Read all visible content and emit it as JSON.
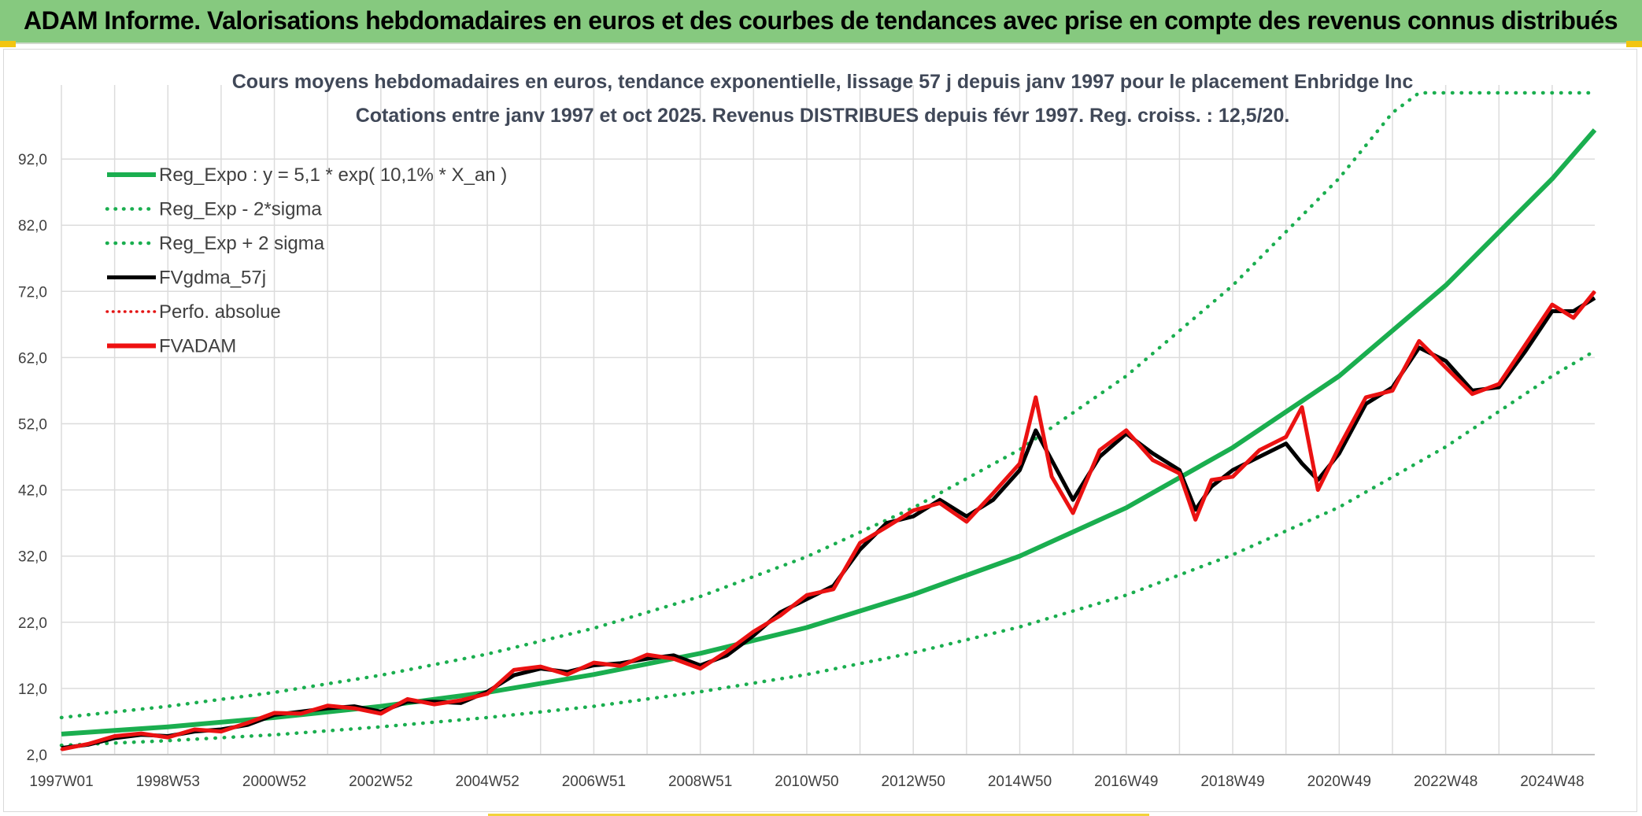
{
  "header": {
    "title": "ADAM Informe. Valorisations hebdomadaires en euros et des courbes de tendances avec prise en compte des revenus connus distribués"
  },
  "colors": {
    "header_bg": "#86c97f",
    "reg_expo": "#1aae4f",
    "band": "#1aae4f",
    "fvgdma": "#000000",
    "perfo": "#e41414",
    "fvadam": "#ee1111",
    "grid": "#dcdcdc"
  },
  "chart_data": {
    "type": "line",
    "title_line1": "Cours moyens hebdomadaires en euros, tendance exponentielle, lissage 57 j depuis janv 1997 pour le placement Enbridge Inc",
    "title_line2": "Cotations entre janv 1997 et oct 2025. Revenus DISTRIBUES depuis févr 1997. Reg. croiss. : 12,5/20.",
    "x_range": [
      1997.0,
      2025.8
    ],
    "ylim": [
      2.0,
      102.0
    ],
    "y_ticks": [
      "2,0",
      "12,0",
      "22,0",
      "32,0",
      "42,0",
      "52,0",
      "62,0",
      "72,0",
      "82,0",
      "92,0"
    ],
    "y_tick_values": [
      2,
      12,
      22,
      32,
      42,
      52,
      62,
      72,
      82,
      92
    ],
    "x_ticks": [
      "1997W01",
      "1998W53",
      "2000W52",
      "2002W52",
      "2004W52",
      "2006W51",
      "2008W51",
      "2010W50",
      "2012W50",
      "2014W50",
      "2016W49",
      "2018W49",
      "2020W49",
      "2022W48",
      "2024W48"
    ],
    "x_tick_values": [
      1997.0,
      1999.0,
      2001.0,
      2003.0,
      2005.0,
      2007.0,
      2009.0,
      2011.0,
      2013.0,
      2015.0,
      2017.0,
      2019.0,
      2021.0,
      2023.0,
      2025.0
    ],
    "legend_position": "top-left",
    "grid": true,
    "legend": [
      {
        "label": "Reg_Expo : y = 5,1 * exp( 10,1% *  X_an )",
        "style": "solid-green"
      },
      {
        "label": "Reg_Exp - 2*sigma",
        "style": "dotted-green"
      },
      {
        "label": "Reg_Exp + 2 sigma",
        "style": "dotted-green"
      },
      {
        "label": "FVgdma_57j",
        "style": "solid-black"
      },
      {
        "label": "Perfo. absolue",
        "style": "dotted-red"
      },
      {
        "label": "FVADAM",
        "style": "solid-red"
      }
    ],
    "series": [
      {
        "name": "Reg_Expo : y = 5,1 * exp( 10,1% *  X_an )",
        "x": [
          1997.0,
          1999.0,
          2001.0,
          2003.0,
          2005.0,
          2007.0,
          2009.0,
          2011.0,
          2013.0,
          2015.0,
          2017.0,
          2019.0,
          2021.0,
          2023.0,
          2025.0,
          2025.8
        ],
        "values": [
          5.1,
          6.2,
          7.6,
          9.3,
          11.4,
          14.1,
          17.3,
          21.2,
          26.2,
          32.0,
          39.3,
          48.4,
          59.2,
          72.9,
          89.0,
          96.4
        ]
      },
      {
        "name": "Reg_Exp - 2*sigma",
        "x": [
          1997.0,
          1999.0,
          2001.0,
          2003.0,
          2005.0,
          2007.0,
          2009.0,
          2011.0,
          2013.0,
          2015.0,
          2017.0,
          2019.0,
          2021.0,
          2023.0,
          2025.0,
          2025.8
        ],
        "values": [
          3.4,
          4.1,
          5.0,
          6.2,
          7.6,
          9.3,
          11.5,
          14.1,
          17.4,
          21.3,
          26.1,
          32.2,
          39.4,
          48.5,
          59.2,
          63.0
        ]
      },
      {
        "name": "Reg_Exp + 2 sigma",
        "x": [
          1997.0,
          1999.0,
          2001.0,
          2003.0,
          2005.0,
          2007.0,
          2009.0,
          2011.0,
          2013.0,
          2015.0,
          2017.0,
          2019.0,
          2021.0,
          2022.0,
          2022.5,
          2025.8
        ],
        "values": [
          7.6,
          9.3,
          11.4,
          14.0,
          17.2,
          21.1,
          25.9,
          31.9,
          39.3,
          48.1,
          59.2,
          72.9,
          89.1,
          99.0,
          102.0,
          102.0
        ]
      },
      {
        "name": "FVgdma_57j",
        "x": [
          1997.0,
          1997.5,
          1998.0,
          1998.5,
          1999.0,
          1999.5,
          2000.0,
          2000.5,
          2001.0,
          2001.5,
          2002.0,
          2002.5,
          2003.0,
          2003.5,
          2004.0,
          2004.5,
          2005.0,
          2005.5,
          2006.0,
          2006.5,
          2007.0,
          2007.5,
          2008.0,
          2008.5,
          2009.0,
          2009.5,
          2010.0,
          2010.5,
          2011.0,
          2011.5,
          2012.0,
          2012.5,
          2013.0,
          2013.5,
          2014.0,
          2014.5,
          2015.0,
          2015.3,
          2015.6,
          2016.0,
          2016.5,
          2017.0,
          2017.5,
          2018.0,
          2018.3,
          2018.6,
          2019.0,
          2019.5,
          2020.0,
          2020.3,
          2020.6,
          2021.0,
          2021.5,
          2022.0,
          2022.5,
          2023.0,
          2023.5,
          2024.0,
          2024.5,
          2025.0,
          2025.4,
          2025.8
        ],
        "values": [
          3.0,
          3.5,
          4.5,
          5.0,
          4.8,
          5.5,
          5.8,
          6.5,
          8.0,
          8.5,
          9.0,
          9.3,
          8.5,
          10.0,
          10.0,
          9.8,
          11.5,
          14.0,
          15.0,
          14.5,
          15.5,
          15.8,
          16.5,
          17.0,
          15.5,
          17.0,
          20.0,
          23.5,
          25.5,
          27.5,
          33.0,
          37.0,
          38.0,
          40.5,
          38.0,
          40.5,
          45.0,
          51.0,
          46.5,
          40.5,
          47.0,
          50.5,
          47.5,
          45.0,
          39.0,
          42.5,
          45.0,
          47.0,
          49.0,
          46.0,
          43.5,
          47.5,
          55.0,
          57.5,
          63.5,
          61.5,
          57.0,
          57.5,
          63.0,
          69.0,
          69.0,
          71.0
        ]
      },
      {
        "name": "Perfo. absolue",
        "x": [
          1997.0,
          1997.5,
          1998.0,
          1998.5,
          1999.0,
          1999.5,
          2000.0,
          2000.5,
          2001.0,
          2001.5,
          2002.0,
          2002.5,
          2003.0,
          2003.5,
          2004.0,
          2004.5,
          2005.0,
          2005.5,
          2006.0,
          2006.5,
          2007.0,
          2007.5,
          2008.0,
          2008.5,
          2009.0,
          2009.5,
          2010.0,
          2010.5,
          2011.0,
          2011.5,
          2012.0,
          2012.5,
          2013.0,
          2013.5,
          2014.0,
          2014.5,
          2015.0,
          2015.3,
          2015.6,
          2016.0,
          2016.5,
          2017.0,
          2017.5,
          2018.0,
          2018.3,
          2018.6,
          2019.0,
          2019.5,
          2020.0,
          2020.3,
          2020.6,
          2021.0,
          2021.5,
          2022.0,
          2022.5,
          2023.0,
          2023.5,
          2024.0,
          2024.5,
          2025.0,
          2025.4,
          2025.8
        ],
        "values": [
          2.8,
          3.6,
          4.8,
          5.2,
          4.6,
          5.8,
          5.5,
          6.8,
          8.3,
          8.2,
          9.4,
          9.0,
          8.2,
          10.4,
          9.6,
          10.2,
          11.2,
          14.8,
          15.3,
          14.1,
          15.9,
          15.4,
          17.1,
          16.5,
          15.0,
          17.6,
          20.6,
          23.0,
          26.1,
          27.0,
          34.0,
          36.4,
          38.9,
          40.0,
          37.2,
          41.5,
          46.0,
          56.0,
          44.0,
          38.5,
          48.0,
          51.0,
          46.5,
          44.5,
          37.5,
          43.5,
          44.0,
          48.0,
          50.0,
          54.5,
          42.0,
          48.5,
          56.0,
          57.0,
          64.5,
          60.5,
          56.5,
          58.0,
          64.0,
          70.0,
          68.0,
          72.0
        ]
      },
      {
        "name": "FVADAM",
        "x": [
          1997.0,
          1997.5,
          1998.0,
          1998.5,
          1999.0,
          1999.5,
          2000.0,
          2000.5,
          2001.0,
          2001.5,
          2002.0,
          2002.5,
          2003.0,
          2003.5,
          2004.0,
          2004.5,
          2005.0,
          2005.5,
          2006.0,
          2006.5,
          2007.0,
          2007.5,
          2008.0,
          2008.5,
          2009.0,
          2009.5,
          2010.0,
          2010.5,
          2011.0,
          2011.5,
          2012.0,
          2012.5,
          2013.0,
          2013.5,
          2014.0,
          2014.5,
          2015.0,
          2015.3,
          2015.6,
          2016.0,
          2016.5,
          2017.0,
          2017.5,
          2018.0,
          2018.3,
          2018.6,
          2019.0,
          2019.5,
          2020.0,
          2020.3,
          2020.6,
          2021.0,
          2021.5,
          2022.0,
          2022.5,
          2023.0,
          2023.5,
          2024.0,
          2024.5,
          2025.0,
          2025.4,
          2025.8
        ],
        "values": [
          2.8,
          3.6,
          4.8,
          5.2,
          4.6,
          5.8,
          5.5,
          6.8,
          8.3,
          8.2,
          9.4,
          9.0,
          8.2,
          10.4,
          9.6,
          10.2,
          11.2,
          14.8,
          15.3,
          14.1,
          15.9,
          15.4,
          17.1,
          16.5,
          15.0,
          17.6,
          20.6,
          23.0,
          26.1,
          27.0,
          34.0,
          36.4,
          38.9,
          40.0,
          37.2,
          41.5,
          46.0,
          56.0,
          44.0,
          38.5,
          48.0,
          51.0,
          46.5,
          44.5,
          37.5,
          43.5,
          44.0,
          48.0,
          50.0,
          54.5,
          42.0,
          48.5,
          56.0,
          57.0,
          64.5,
          60.5,
          56.5,
          58.0,
          64.0,
          70.0,
          68.0,
          72.0
        ]
      }
    ]
  }
}
